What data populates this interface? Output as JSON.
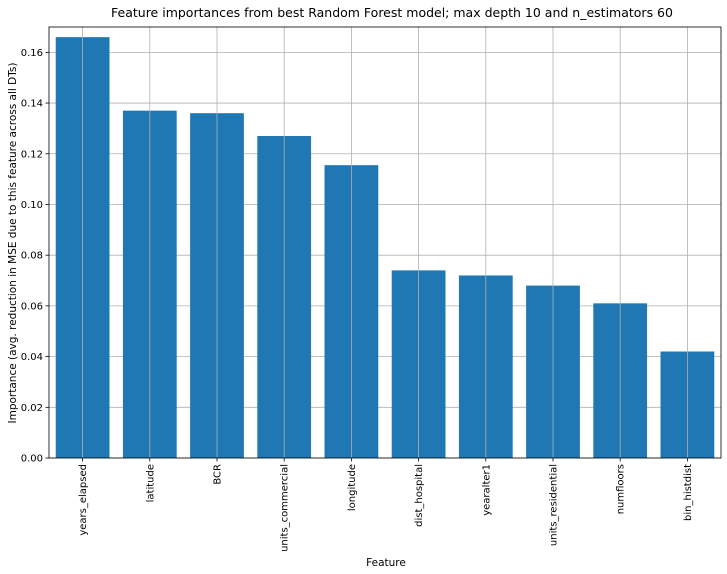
{
  "chart_data": {
    "type": "bar",
    "title": "Feature importances from best Random Forest model; max depth 10 and n_estimators 60",
    "xlabel": "Feature",
    "ylabel": "Importance (avg. reduction in MSE due to this feature across all DTs)",
    "categories": [
      "years_elapsed",
      "latitude",
      "BCR",
      "units_commercial",
      "longitude",
      "dist_hospital",
      "yearalter1",
      "units_residential",
      "numfloors",
      "bin_histdist"
    ],
    "values": [
      0.166,
      0.137,
      0.136,
      0.127,
      0.1155,
      0.074,
      0.072,
      0.068,
      0.061,
      0.042
    ],
    "ylim": [
      0,
      0.17
    ],
    "yticks": [
      "0.00",
      "0.02",
      "0.04",
      "0.06",
      "0.08",
      "0.10",
      "0.12",
      "0.14",
      "0.16"
    ],
    "grid": true,
    "bar_color": "#1f77b4"
  }
}
